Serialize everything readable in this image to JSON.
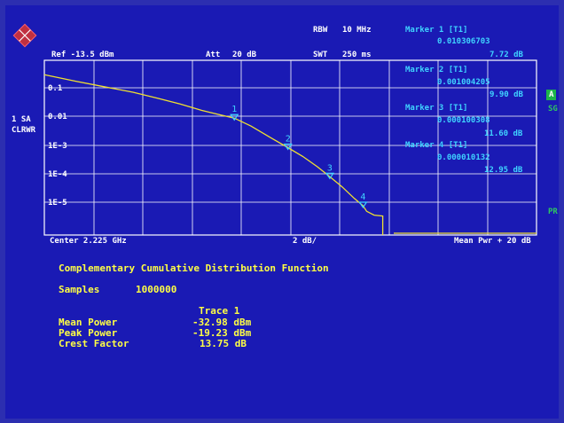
{
  "header": {
    "rbw_label": "RBW",
    "rbw_value": "10 MHz",
    "ref": "Ref -13.5 dBm",
    "att_label": "Att",
    "att_value": "20 dB",
    "swt_label": "SWT",
    "swt_value": "250 ms"
  },
  "side": {
    "trace_num": "1 SA",
    "trace_mode": "CLRWR",
    "tag_a": "A",
    "tag_sg": "SG",
    "tag_pr": "PR"
  },
  "markers": [
    {
      "title": "Marker 1 [T1]",
      "prob": "0.010306703",
      "level": "7.72 dB"
    },
    {
      "title": "Marker 2 [T1]",
      "prob": "0.001004205",
      "level": "9.90 dB"
    },
    {
      "title": "Marker 3 [T1]",
      "prob": "0.000100308",
      "level": "11.60 dB"
    },
    {
      "title": "Marker 4 [T1]",
      "prob": "0.000010132",
      "level": "12.95 dB"
    }
  ],
  "grid_labels": [
    "0.1",
    "0.01",
    "1E-3",
    "1E-4",
    "1E-5"
  ],
  "footer": {
    "center": "Center 2.225 GHz",
    "scale": "2 dB/",
    "right": "Mean Pwr + 20 dB"
  },
  "results": {
    "title": "Complementary Cumulative Distribution Function",
    "samples_label": "Samples",
    "samples_value": "1000000",
    "trace_header": "Trace 1",
    "rows": [
      {
        "label": "Mean Power",
        "value": "-32.98 dBm"
      },
      {
        "label": "Peak Power",
        "value": "-19.23 dBm"
      },
      {
        "label": "Crest Factor",
        "value": "13.75 dB"
      }
    ]
  },
  "chart_data": {
    "type": "line",
    "xlabel": "",
    "ylabel": "",
    "x_unit": "dB",
    "y_scale": "log",
    "xlim": [
      0,
      20
    ],
    "ylim": [
      1e-06,
      1
    ],
    "series": [
      {
        "x": [
          0,
          1.3,
          2.5,
          3.6,
          4.6,
          5.5,
          6.4,
          7.2,
          7.72,
          8.4,
          9.2,
          9.9,
          10.5,
          11.1,
          11.6,
          12.1,
          12.6,
          12.95,
          13.1,
          13.4,
          13.75,
          13.75
        ],
        "y": [
          0.32,
          0.19,
          0.12,
          0.08,
          0.05,
          0.032,
          0.019,
          0.013,
          0.0103,
          0.0055,
          0.0022,
          0.001,
          0.0005,
          0.00022,
          0.0001,
          4.5e-05,
          1.8e-05,
          1.01e-05,
          6.5e-06,
          4.8e-06,
          4.5e-06,
          1e-06
        ]
      }
    ],
    "markers": [
      {
        "label": "1",
        "x": 7.72,
        "y": 0.010306703
      },
      {
        "label": "2",
        "x": 9.9,
        "y": 0.001004205
      },
      {
        "label": "3",
        "x": 11.6,
        "y": 0.000100308
      },
      {
        "label": "4",
        "x": 12.95,
        "y": 1.0132e-05
      }
    ],
    "grid": true
  },
  "colors": {
    "background": "#1a1ab4",
    "grid": "#ffffff",
    "trace": "#f0e030",
    "marker": "#3fd3ff",
    "results_text": "#ffff44"
  },
  "icons": {
    "logo": "rohde-schwarz-logo"
  }
}
